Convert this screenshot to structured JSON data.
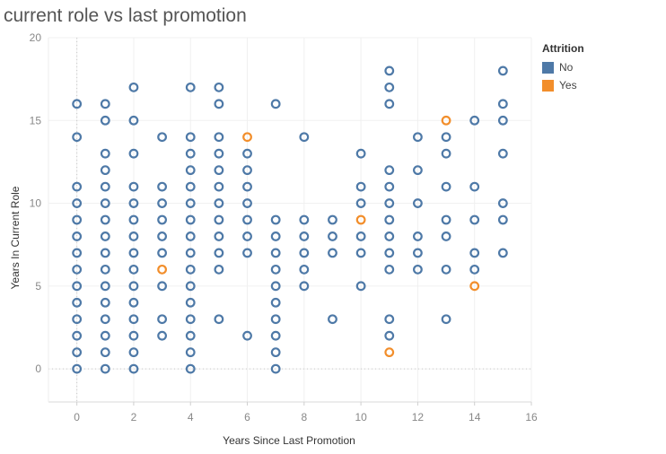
{
  "title": "current role vs last promotion",
  "legend": {
    "title": "Attrition",
    "items": [
      {
        "label": "No",
        "color": "#4e79a7"
      },
      {
        "label": "Yes",
        "color": "#f28e2b"
      }
    ]
  },
  "chart_data": {
    "type": "scatter",
    "title": "current role vs last promotion",
    "xlabel": "Years Since Last Promotion",
    "ylabel": "Years In Current Role",
    "xlim": [
      -1,
      16
    ],
    "ylim": [
      -2,
      20
    ],
    "xticks": [
      0,
      2,
      4,
      6,
      8,
      10,
      12,
      14,
      16
    ],
    "yticks": [
      0,
      5,
      10,
      15,
      20
    ],
    "grid": true,
    "legend_position": "right",
    "marker": "hollow-circle",
    "series": [
      {
        "name": "No",
        "color": "#4e79a7",
        "points": [
          [
            0,
            0
          ],
          [
            0,
            1
          ],
          [
            0,
            2
          ],
          [
            0,
            3
          ],
          [
            0,
            4
          ],
          [
            0,
            5
          ],
          [
            0,
            6
          ],
          [
            0,
            7
          ],
          [
            0,
            8
          ],
          [
            0,
            9
          ],
          [
            0,
            10
          ],
          [
            0,
            11
          ],
          [
            0,
            14
          ],
          [
            0,
            16
          ],
          [
            1,
            0
          ],
          [
            1,
            1
          ],
          [
            1,
            2
          ],
          [
            1,
            3
          ],
          [
            1,
            4
          ],
          [
            1,
            5
          ],
          [
            1,
            6
          ],
          [
            1,
            7
          ],
          [
            1,
            8
          ],
          [
            1,
            9
          ],
          [
            1,
            10
          ],
          [
            1,
            11
          ],
          [
            1,
            12
          ],
          [
            1,
            13
          ],
          [
            1,
            15
          ],
          [
            1,
            16
          ],
          [
            2,
            0
          ],
          [
            2,
            1
          ],
          [
            2,
            2
          ],
          [
            2,
            3
          ],
          [
            2,
            4
          ],
          [
            2,
            5
          ],
          [
            2,
            6
          ],
          [
            2,
            7
          ],
          [
            2,
            8
          ],
          [
            2,
            9
          ],
          [
            2,
            10
          ],
          [
            2,
            11
          ],
          [
            2,
            13
          ],
          [
            2,
            15
          ],
          [
            2,
            17
          ],
          [
            3,
            2
          ],
          [
            3,
            3
          ],
          [
            3,
            5
          ],
          [
            3,
            7
          ],
          [
            3,
            8
          ],
          [
            3,
            9
          ],
          [
            3,
            10
          ],
          [
            3,
            11
          ],
          [
            3,
            14
          ],
          [
            4,
            0
          ],
          [
            4,
            1
          ],
          [
            4,
            2
          ],
          [
            4,
            3
          ],
          [
            4,
            4
          ],
          [
            4,
            5
          ],
          [
            4,
            6
          ],
          [
            4,
            7
          ],
          [
            4,
            8
          ],
          [
            4,
            9
          ],
          [
            4,
            10
          ],
          [
            4,
            11
          ],
          [
            4,
            12
          ],
          [
            4,
            13
          ],
          [
            4,
            14
          ],
          [
            4,
            17
          ],
          [
            5,
            3
          ],
          [
            5,
            6
          ],
          [
            5,
            7
          ],
          [
            5,
            8
          ],
          [
            5,
            9
          ],
          [
            5,
            10
          ],
          [
            5,
            11
          ],
          [
            5,
            12
          ],
          [
            5,
            13
          ],
          [
            5,
            14
          ],
          [
            5,
            16
          ],
          [
            5,
            17
          ],
          [
            6,
            2
          ],
          [
            6,
            7
          ],
          [
            6,
            8
          ],
          [
            6,
            9
          ],
          [
            6,
            10
          ],
          [
            6,
            11
          ],
          [
            6,
            12
          ],
          [
            6,
            13
          ],
          [
            7,
            0
          ],
          [
            7,
            1
          ],
          [
            7,
            2
          ],
          [
            7,
            3
          ],
          [
            7,
            4
          ],
          [
            7,
            5
          ],
          [
            7,
            6
          ],
          [
            7,
            7
          ],
          [
            7,
            8
          ],
          [
            7,
            9
          ],
          [
            7,
            16
          ],
          [
            8,
            5
          ],
          [
            8,
            6
          ],
          [
            8,
            7
          ],
          [
            8,
            8
          ],
          [
            8,
            9
          ],
          [
            8,
            14
          ],
          [
            9,
            3
          ],
          [
            9,
            7
          ],
          [
            9,
            8
          ],
          [
            9,
            9
          ],
          [
            10,
            5
          ],
          [
            10,
            7
          ],
          [
            10,
            8
          ],
          [
            10,
            10
          ],
          [
            10,
            11
          ],
          [
            10,
            13
          ],
          [
            11,
            2
          ],
          [
            11,
            3
          ],
          [
            11,
            6
          ],
          [
            11,
            7
          ],
          [
            11,
            8
          ],
          [
            11,
            9
          ],
          [
            11,
            10
          ],
          [
            11,
            11
          ],
          [
            11,
            12
          ],
          [
            11,
            16
          ],
          [
            11,
            17
          ],
          [
            11,
            18
          ],
          [
            12,
            6
          ],
          [
            12,
            7
          ],
          [
            12,
            8
          ],
          [
            12,
            10
          ],
          [
            12,
            12
          ],
          [
            12,
            14
          ],
          [
            13,
            3
          ],
          [
            13,
            6
          ],
          [
            13,
            8
          ],
          [
            13,
            9
          ],
          [
            13,
            11
          ],
          [
            13,
            13
          ],
          [
            13,
            14
          ],
          [
            14,
            6
          ],
          [
            14,
            7
          ],
          [
            14,
            9
          ],
          [
            14,
            11
          ],
          [
            14,
            15
          ],
          [
            15,
            7
          ],
          [
            15,
            9
          ],
          [
            15,
            10
          ],
          [
            15,
            13
          ],
          [
            15,
            15
          ],
          [
            15,
            16
          ],
          [
            15,
            18
          ]
        ]
      },
      {
        "name": "Yes",
        "color": "#f28e2b",
        "points": [
          [
            3,
            6
          ],
          [
            6,
            14
          ],
          [
            10,
            9
          ],
          [
            11,
            1
          ],
          [
            13,
            15
          ],
          [
            14,
            5
          ]
        ]
      }
    ]
  }
}
